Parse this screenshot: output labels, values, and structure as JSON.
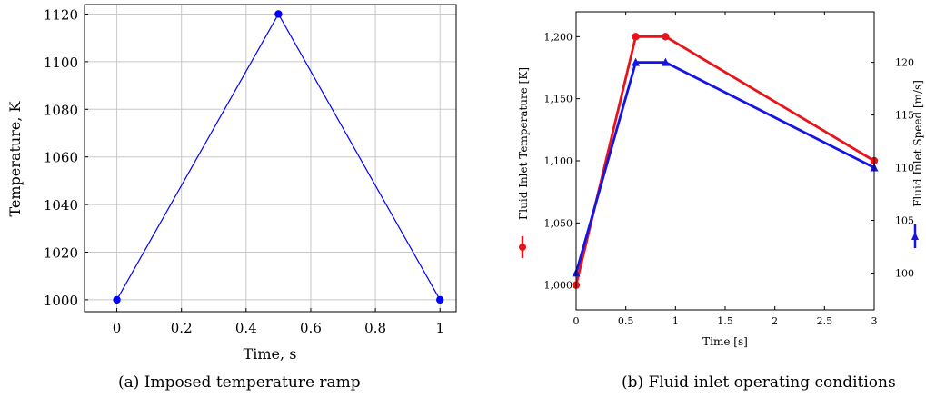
{
  "chart_data": [
    {
      "type": "line",
      "xlabel": "Time, s",
      "ylabel": "Temperature, K",
      "xlim": [
        -0.1,
        1.05
      ],
      "ylim": [
        995,
        1124
      ],
      "grid": true,
      "x_ticks": [
        "0",
        "0.2",
        "0.4",
        "0.6",
        "0.8",
        "1"
      ],
      "x_tick_values": [
        0,
        0.2,
        0.4,
        0.6,
        0.8,
        1
      ],
      "y_ticks": [
        "1000",
        "1020",
        "1040",
        "1060",
        "1080",
        "1100",
        "1120"
      ],
      "y_tick_values": [
        1000,
        1020,
        1040,
        1060,
        1080,
        1100,
        1120
      ],
      "series": [
        {
          "color": "#0000ff",
          "marker": "circle",
          "x": [
            0,
            0.5,
            1
          ],
          "y": [
            1000,
            1120,
            1000
          ]
        }
      ],
      "caption": "(a) Imposed temperature ramp"
    },
    {
      "type": "line",
      "xlabel": "Time [s]",
      "ylabel_left": "Fluid Inlet Temperature [K]",
      "ylabel_right": "Fluid Inlet Speed [m/s]",
      "xlim": [
        0,
        3
      ],
      "ylim_left": [
        980,
        1220
      ],
      "ylim_right": [
        96.5,
        124.8
      ],
      "grid": false,
      "x_ticks": [
        "0",
        "0.5",
        "1",
        "1.5",
        "2",
        "2.5",
        "3"
      ],
      "x_tick_values": [
        0,
        0.5,
        1,
        1.5,
        2,
        2.5,
        3
      ],
      "y_left_ticks": [
        "1,000",
        "1,050",
        "1,100",
        "1,150",
        "1,200"
      ],
      "y_left_tick_values": [
        1000,
        1050,
        1100,
        1150,
        1200
      ],
      "y_right_ticks": [
        "100",
        "105",
        "110",
        "115",
        "120"
      ],
      "y_right_tick_values": [
        100,
        105,
        110,
        115,
        120
      ],
      "series": [
        {
          "axis": "left",
          "color": "#e8141a",
          "marker": "circle",
          "x": [
            0,
            0.6,
            0.9,
            3
          ],
          "y": [
            1000,
            1200,
            1200,
            1100
          ]
        },
        {
          "axis": "right",
          "color": "#1414e8",
          "marker": "triangle",
          "x": [
            0,
            0.6,
            0.9,
            3
          ],
          "y": [
            100,
            120,
            120,
            110
          ]
        }
      ],
      "caption": "(b) Fluid inlet operating conditions"
    }
  ]
}
